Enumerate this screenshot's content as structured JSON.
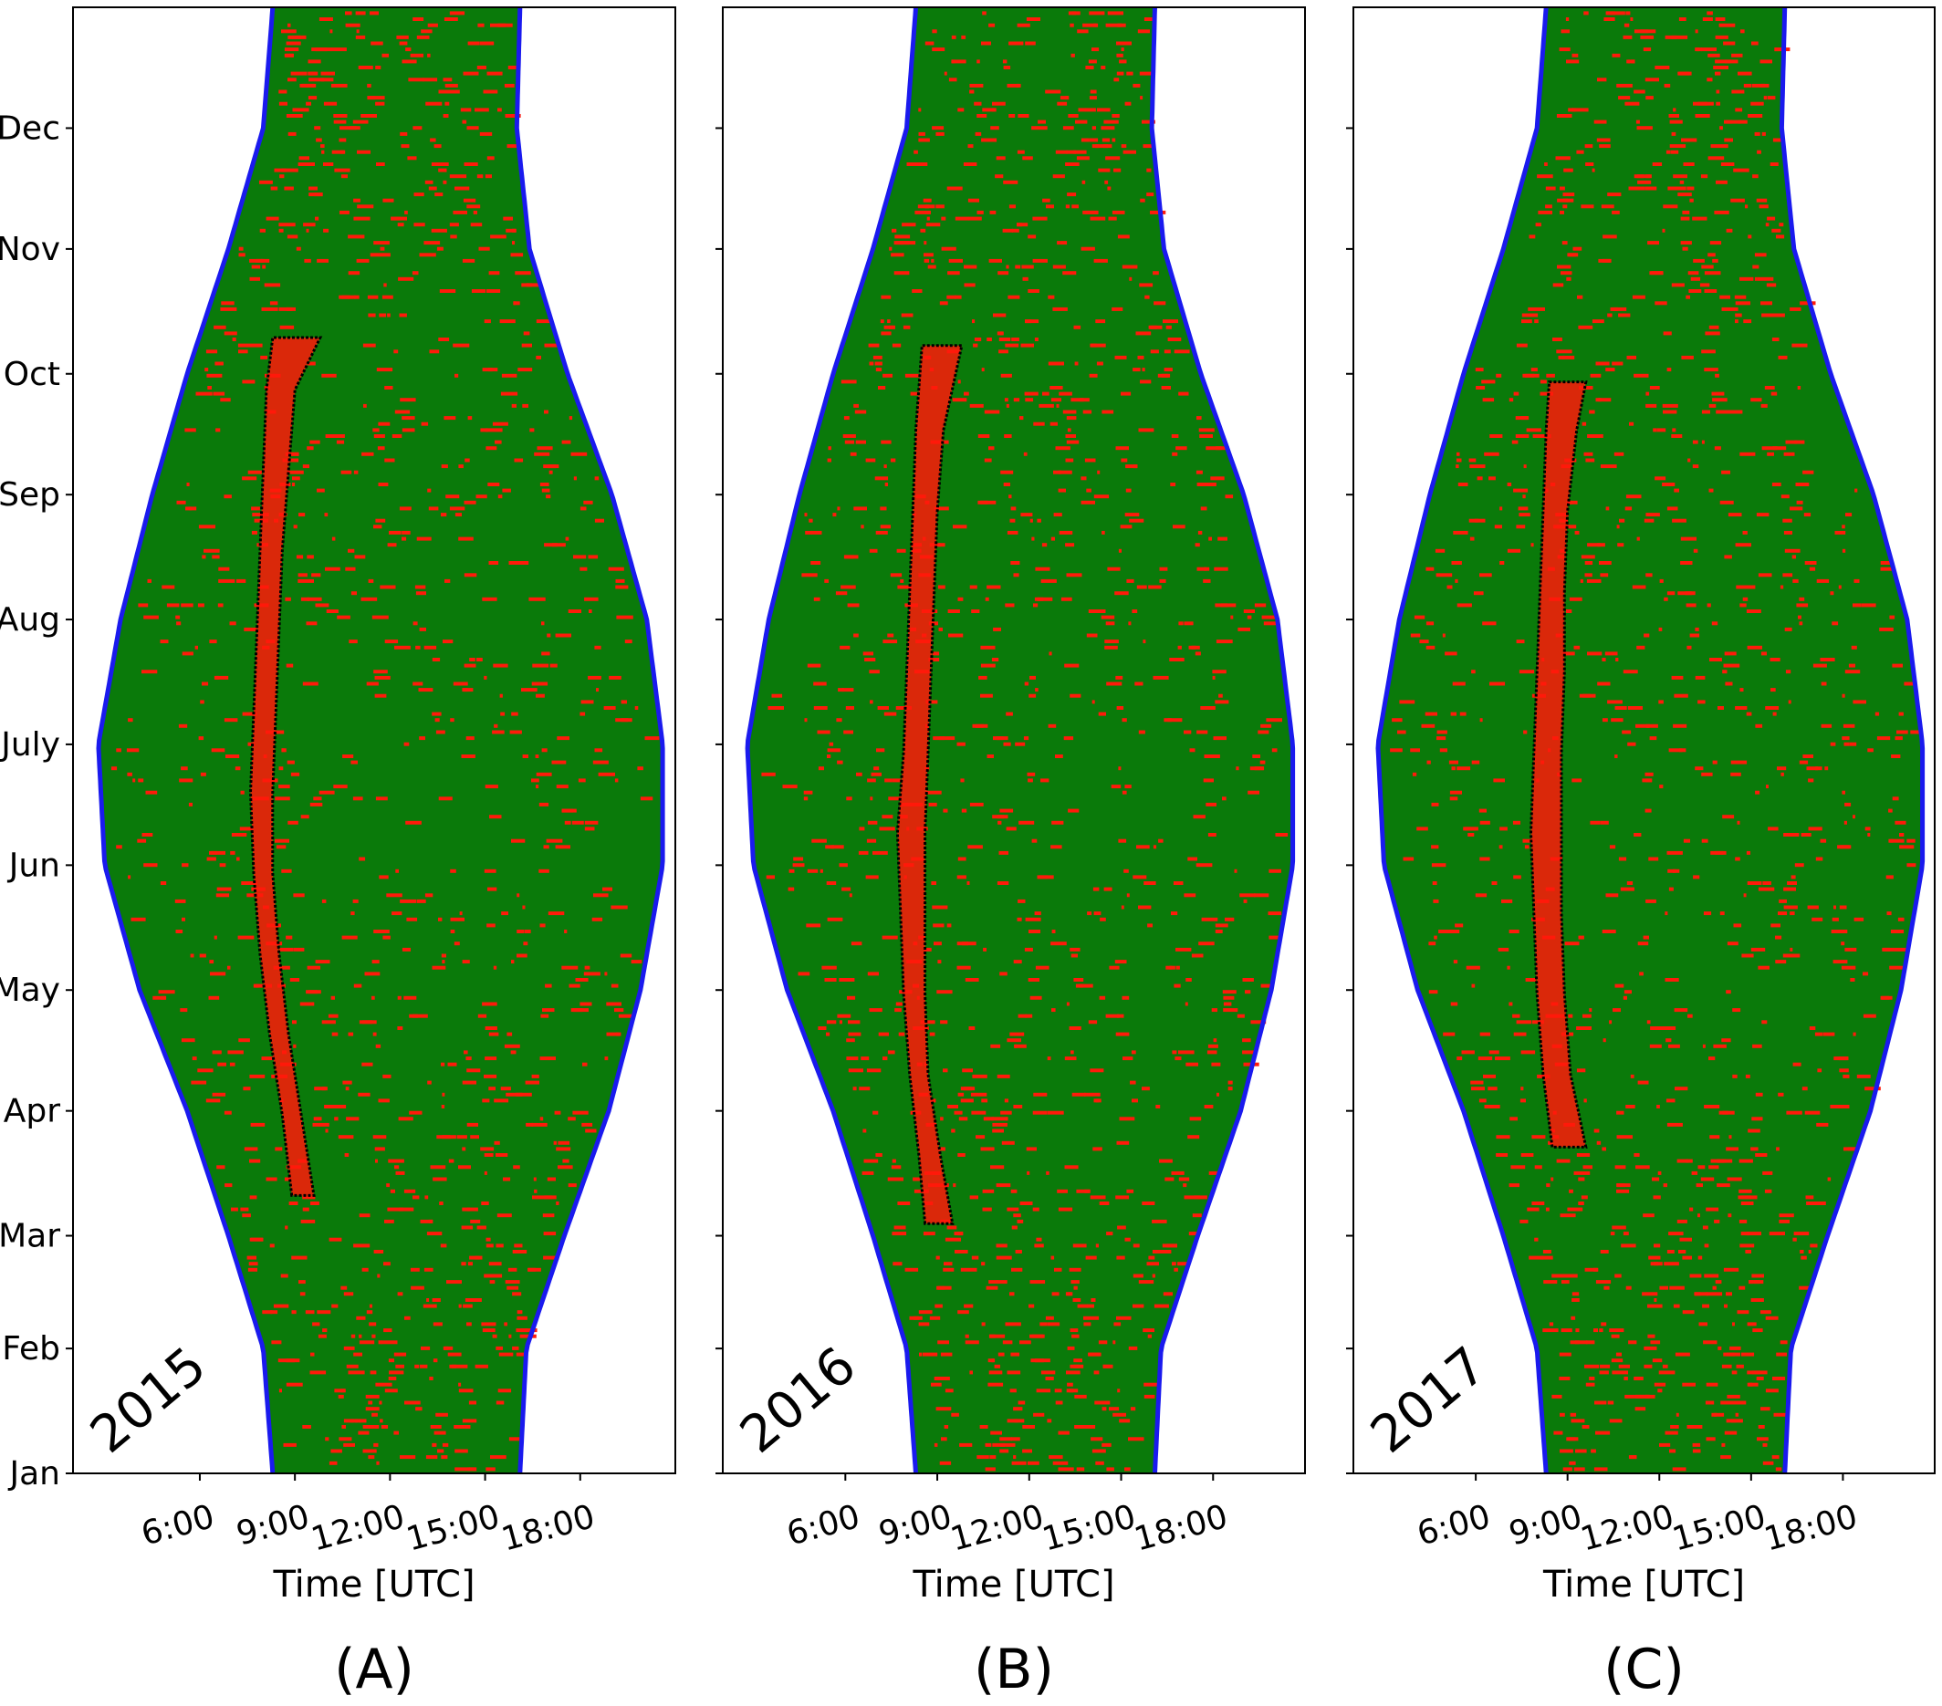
{
  "chart_data": [
    {
      "type": "scatter",
      "panel_label": "(A)",
      "year_label": "2015",
      "xlabel": "Time [UTC]",
      "ylabel": "",
      "x_ticks": [
        "6:00",
        "9:00",
        "12:00",
        "15:00",
        "18:00"
      ],
      "y_ticks": [
        "Jan",
        "Feb",
        "Mar",
        "Apr",
        "May",
        "Jun",
        "July",
        "Aug",
        "Sep",
        "Oct",
        "Nov",
        "Dec"
      ],
      "xlim_hours": [
        2.0,
        21.0
      ],
      "ylim_day": [
        1,
        365
      ],
      "colors": {
        "daylight": "#0a7a0a",
        "events": "#ff1a0a",
        "boundary": "#1a1aee",
        "region": "#000000"
      },
      "daylight_boundary": {
        "day": [
          1,
          32,
          60,
          91,
          121,
          152,
          182,
          213,
          244,
          274,
          305,
          335,
          365
        ],
        "sunrise": [
          8.3,
          8.0,
          6.9,
          5.6,
          4.1,
          3.0,
          2.8,
          3.5,
          4.5,
          5.6,
          6.9,
          8.0,
          8.3
        ],
        "sunset": [
          16.1,
          16.3,
          17.5,
          18.9,
          19.9,
          20.6,
          20.6,
          20.1,
          19.0,
          17.6,
          16.4,
          16.0,
          16.1
        ]
      },
      "selected_region": {
        "day": [
          70,
          90,
          110,
          130,
          150,
          170,
          190,
          210,
          230,
          250,
          270,
          283
        ],
        "start": [
          8.9,
          8.6,
          8.2,
          7.9,
          7.7,
          7.6,
          7.7,
          7.8,
          7.9,
          8.0,
          8.1,
          8.3
        ],
        "end": [
          9.6,
          9.2,
          8.8,
          8.5,
          8.3,
          8.3,
          8.4,
          8.5,
          8.6,
          8.8,
          9.0,
          9.8
        ]
      }
    },
    {
      "type": "scatter",
      "panel_label": "(B)",
      "year_label": "2016",
      "xlabel": "Time [UTC]",
      "ylabel": "",
      "x_ticks": [
        "6:00",
        "9:00",
        "12:00",
        "15:00",
        "18:00"
      ],
      "y_ticks": [],
      "xlim_hours": [
        2.0,
        21.0
      ],
      "ylim_day": [
        1,
        365
      ],
      "colors": {
        "daylight": "#0a7a0a",
        "events": "#ff1a0a",
        "boundary": "#1a1aee",
        "region": "#000000"
      },
      "daylight_boundary": {
        "day": [
          1,
          32,
          60,
          91,
          121,
          152,
          182,
          213,
          244,
          274,
          305,
          335,
          365
        ],
        "sunrise": [
          8.3,
          8.0,
          6.9,
          5.6,
          4.1,
          3.0,
          2.8,
          3.5,
          4.5,
          5.6,
          6.9,
          8.0,
          8.3
        ],
        "sunset": [
          16.1,
          16.3,
          17.5,
          18.9,
          19.9,
          20.6,
          20.6,
          20.1,
          19.0,
          17.6,
          16.4,
          16.0,
          16.1
        ]
      },
      "selected_region": {
        "day": [
          63,
          80,
          100,
          120,
          140,
          160,
          180,
          200,
          220,
          240,
          260,
          281
        ],
        "start": [
          8.6,
          8.4,
          8.1,
          7.9,
          7.8,
          7.7,
          7.9,
          8.0,
          8.1,
          8.2,
          8.3,
          8.5
        ],
        "end": [
          9.5,
          9.1,
          8.7,
          8.6,
          8.6,
          8.6,
          8.7,
          8.8,
          8.9,
          9.0,
          9.2,
          9.8
        ]
      }
    },
    {
      "type": "scatter",
      "panel_label": "(C)",
      "year_label": "2017",
      "xlabel": "Time [UTC]",
      "ylabel": "",
      "x_ticks": [
        "6:00",
        "9:00",
        "12:00",
        "15:00",
        "18:00"
      ],
      "y_ticks": [],
      "xlim_hours": [
        2.0,
        21.0
      ],
      "ylim_day": [
        1,
        365
      ],
      "colors": {
        "daylight": "#0a7a0a",
        "events": "#ff1a0a",
        "boundary": "#1a1aee",
        "region": "#000000"
      },
      "daylight_boundary": {
        "day": [
          1,
          32,
          60,
          91,
          121,
          152,
          182,
          213,
          244,
          274,
          305,
          335,
          365
        ],
        "sunrise": [
          8.3,
          8.0,
          6.9,
          5.6,
          4.1,
          3.0,
          2.8,
          3.5,
          4.5,
          5.6,
          6.9,
          8.0,
          8.3
        ],
        "sunset": [
          16.1,
          16.3,
          17.5,
          18.9,
          19.9,
          20.6,
          20.6,
          20.1,
          19.0,
          17.6,
          16.4,
          16.0,
          16.1
        ]
      },
      "selected_region": {
        "day": [
          82,
          100,
          120,
          140,
          160,
          180,
          200,
          220,
          240,
          260,
          272
        ],
        "start": [
          8.5,
          8.2,
          8.0,
          7.9,
          7.8,
          7.9,
          8.0,
          8.1,
          8.2,
          8.3,
          8.4
        ],
        "end": [
          9.6,
          9.1,
          8.9,
          8.8,
          8.8,
          8.8,
          8.9,
          8.9,
          9.0,
          9.3,
          9.6
        ]
      }
    }
  ]
}
